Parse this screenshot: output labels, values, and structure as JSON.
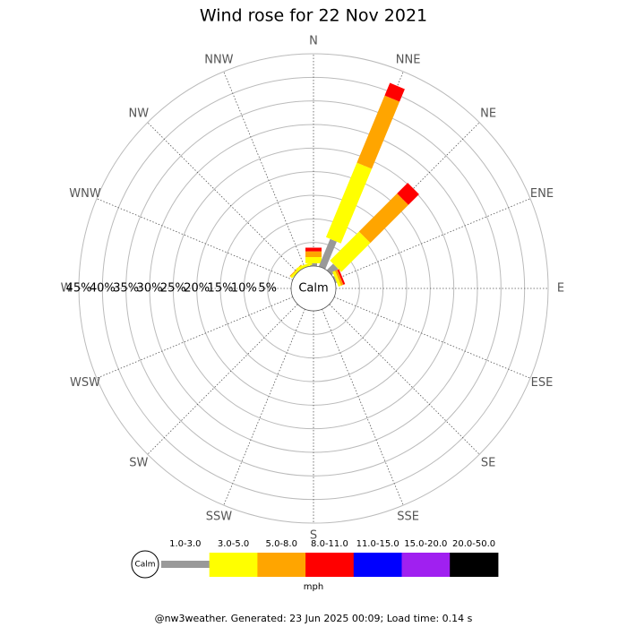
{
  "chart_data": {
    "type": "wind-rose",
    "title": "Wind rose for 22 Nov 2021",
    "calm_label": "Calm",
    "units_label": "mph",
    "footer": "@nw3weather. Generated: 23 Jun 2025 00:09; Load time: 0.14 s",
    "categories": [
      "N",
      "NNE",
      "NE",
      "ENE",
      "E",
      "ESE",
      "SE",
      "SSE",
      "S",
      "SSW",
      "SW",
      "WSW",
      "W",
      "WNW",
      "NW",
      "NNW"
    ],
    "rlim": [
      0,
      45
    ],
    "rticks": [
      {
        "value": 5,
        "label": "5%"
      },
      {
        "value": 10,
        "label": "10%"
      },
      {
        "value": 15,
        "label": "15%"
      },
      {
        "value": 20,
        "label": "20%"
      },
      {
        "value": 25,
        "label": "25%"
      },
      {
        "value": 30,
        "label": "30%"
      },
      {
        "value": 35,
        "label": "35%"
      },
      {
        "value": 40,
        "label": "40%"
      },
      {
        "value": 45,
        "label": "45%"
      }
    ],
    "series": [
      {
        "name": "1.0-3.0",
        "color": "#999999",
        "values": [
          0.6,
          6.3,
          1.9,
          0.3,
          0,
          0,
          0,
          0,
          0,
          0,
          0,
          0,
          0,
          0,
          0,
          0
        ]
      },
      {
        "name": "3.0-5.0",
        "color": "#ffff00",
        "values": [
          1.3,
          17.1,
          8.7,
          0.6,
          0,
          0,
          0,
          0,
          0,
          0,
          0,
          0,
          0,
          0,
          0.5,
          0.6
        ]
      },
      {
        "name": "5.0-8.0",
        "color": "#ffa500",
        "values": [
          1.2,
          15.4,
          11.4,
          0.5,
          0,
          0,
          0,
          0,
          0,
          0,
          0,
          0,
          0,
          0,
          0.2,
          0
        ]
      },
      {
        "name": "8.0-11.0",
        "color": "#ff0000",
        "values": [
          0.8,
          2.9,
          3.2,
          0.4,
          0,
          0,
          0,
          0,
          0,
          0,
          0,
          0,
          0,
          0,
          0,
          0
        ]
      },
      {
        "name": "11.0-15.0",
        "color": "#0000ff",
        "values": [
          0,
          0,
          0,
          0,
          0,
          0,
          0,
          0,
          0,
          0,
          0,
          0,
          0,
          0,
          0,
          0
        ]
      },
      {
        "name": "15.0-20.0",
        "color": "#a020f0",
        "values": [
          0,
          0,
          0,
          0,
          0,
          0,
          0,
          0,
          0,
          0,
          0,
          0,
          0,
          0,
          0,
          0
        ]
      },
      {
        "name": "20.0-50.0",
        "color": "#000000",
        "values": [
          0,
          0,
          0,
          0,
          0,
          0,
          0,
          0,
          0,
          0,
          0,
          0,
          0,
          0,
          0,
          0
        ]
      }
    ]
  }
}
